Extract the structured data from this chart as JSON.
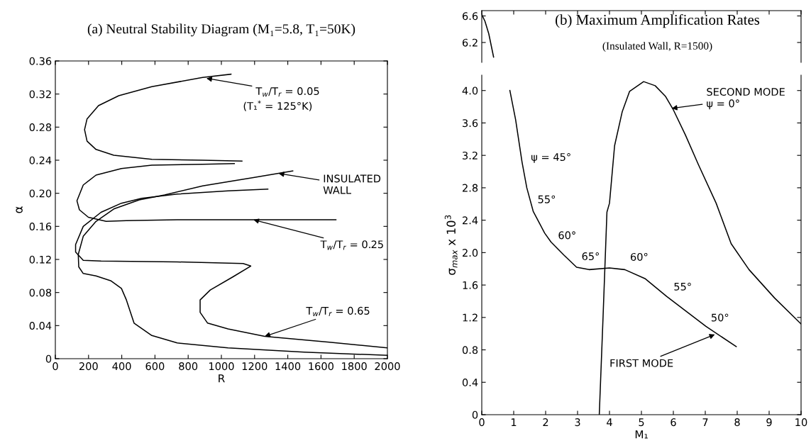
{
  "chart_data": [
    {
      "type": "line",
      "title": "(a) Neutral Stability Diagram (M₁=5.8, T₁=50K)",
      "xlabel": "R",
      "ylabel": "α",
      "xlim": [
        0,
        2000
      ],
      "xticks": [
        0,
        200,
        400,
        600,
        800,
        1000,
        1200,
        1400,
        1600,
        1800,
        2000
      ],
      "ylim": [
        0,
        0.36
      ],
      "yticks": [
        0,
        0.04,
        0.08,
        0.12,
        0.16,
        {
          "value": 0.2,
          "label": "0.20"
        },
        0.24,
        0.28,
        0.32,
        0.36
      ],
      "grid": false,
      "legend": false,
      "marker": "none",
      "line_style": "solid",
      "series": [
        {
          "color": "#000000",
          "x": [
            1058,
            887,
            581,
            382,
            260,
            191,
            176,
            191,
            245,
            352,
            581,
            887,
            1124
          ],
          "values": [
            0.344,
            0.34,
            0.329,
            0.318,
            0.306,
            0.29,
            0.277,
            0.263,
            0.253,
            0.246,
            0.241,
            0.24,
            0.239
          ]
        },
        {
          "color": "#000000",
          "x": [
            1078,
            887,
            581,
            398,
            245,
            168,
            130,
            145,
            199,
            306,
            428,
            734,
            1193,
            1690
          ],
          "values": [
            0.236,
            0.235,
            0.234,
            0.23,
            0.222,
            0.21,
            0.191,
            0.18,
            0.171,
            0.166,
            0.167,
            0.168,
            0.168,
            0.168
          ]
        },
        {
          "color": "#000000",
          "x": [
            2000,
            1498,
            1040,
            734,
            581,
            474,
            428,
            398,
            336,
            245,
            168,
            141,
            138,
            168,
            245,
            352,
            505,
            658,
            887,
            1193,
            1430
          ],
          "values": [
            0.004,
            0.008,
            0.013,
            0.019,
            0.028,
            0.043,
            0.071,
            0.085,
            0.094,
            0.1,
            0.103,
            0.111,
            0.126,
            0.148,
            0.166,
            0.181,
            0.192,
            0.198,
            0.209,
            0.219,
            0.227
          ]
        },
        {
          "color": "#000000",
          "x": [
            2000,
            1651,
            1261,
            1040,
            917,
            872,
            872,
            933,
            1070,
            1177,
            1131,
            734,
            275,
            168,
            122,
            122,
            168,
            275,
            398,
            520,
            734,
            1040,
            1280
          ],
          "values": [
            0.013,
            0.02,
            0.027,
            0.036,
            0.043,
            0.056,
            0.071,
            0.083,
            0.099,
            0.112,
            0.115,
            0.117,
            0.118,
            0.119,
            0.129,
            0.138,
            0.16,
            0.177,
            0.188,
            0.194,
            0.199,
            0.203,
            0.205
          ]
        }
      ],
      "annotations": [
        {
          "text": "T$_{w}$/T$_{r}$ = 0.05",
          "x": 910,
          "y": 0.339
        },
        "(T₁$^{*}$ = 125°K)",
        {
          "text": "INSULATED\nWALL",
          "x": 1345,
          "y": 0.224
        },
        {
          "text": "T$_{w}$/T$_{r}$ = 0.25",
          "x": 1193,
          "y": 0.168
        },
        {
          "text": "T$_{w}$/T$_{r}$ = 0.65",
          "x": 1261,
          "y": 0.027
        }
      ]
    },
    {
      "type": "line",
      "title": "(b) Maximum Amplification Rates",
      "subtitle": "(Insulated Wall, R=1500)",
      "xlim": [
        0,
        10
      ],
      "xticks": [
        0,
        1,
        2,
        3,
        4,
        5,
        6,
        7,
        8,
        9,
        10
      ],
      "ylim": [
        5.9,
        6.68
      ],
      "yticks": [
        6.2,
        6.6
      ],
      "tick_labels": "y",
      "grid": false,
      "legend": false,
      "marker": "none",
      "line_style": "solid",
      "series": [
        {
          "color": "#000000",
          "x": [
            0,
            0.1,
            0.22,
            0.37
          ],
          "values": [
            6.62,
            6.52,
            6.33,
            5.98
          ]
        }
      ]
    },
    {
      "type": "line",
      "xlabel": "M₁",
      "ylabel": "σ$_{max}$ x 10$^{3}$",
      "xlim": [
        0,
        10
      ],
      "xticks": [
        0,
        1,
        2,
        3,
        4,
        5,
        6,
        7,
        8,
        9,
        10
      ],
      "ylim": [
        0,
        4.19
      ],
      "yticks": [
        0,
        0.4,
        0.8,
        1.2,
        1.6,
        {
          "value": 2,
          "label": "2.0"
        },
        2.4,
        2.8,
        3.2,
        3.6,
        {
          "value": 4,
          "label": "4.0"
        }
      ],
      "grid": false,
      "legend": false,
      "marker": "none",
      "line_style": "solid",
      "series": [
        {
          "color": "#000000",
          "x": [
            0.88,
            1.06,
            1.26,
            1.41,
            1.61,
            1.97,
            2.17,
            2.57,
            2.97,
            3.36,
            4.0,
            4.48,
            5.11,
            5.79,
            7.02,
            7.97
          ],
          "values": [
            4.0,
            3.64,
            3.12,
            2.8,
            2.51,
            2.24,
            2.13,
            1.97,
            1.82,
            1.79,
            1.81,
            1.79,
            1.68,
            1.46,
            1.09,
            0.84
          ]
        },
        {
          "color": "#000000",
          "x": [
            3.68,
            3.8,
            3.92,
            4.0,
            4.16,
            4.4,
            4.63,
            5.07,
            5.43,
            5.75,
            5.99,
            6.38,
            6.78,
            7.34,
            7.81,
            8.37,
            9.17,
            10.0
          ],
          "values": [
            0,
            1.22,
            2.5,
            2.61,
            3.32,
            3.74,
            3.99,
            4.11,
            4.06,
            3.93,
            3.77,
            3.45,
            3.09,
            2.61,
            2.11,
            1.79,
            1.44,
            1.12
          ]
        }
      ],
      "annotations": [
        {
          "text": "ψ = 45°",
          "x": 1.26,
          "y": 3.12
        },
        {
          "text": "55°",
          "x": 1.53,
          "y": 2.61
        },
        {
          "text": "60°",
          "x": 2.17,
          "y": 2.13
        },
        {
          "text": "65°",
          "x": 3.0,
          "y": 1.81
        },
        {
          "text": "60°",
          "x": 4.52,
          "y": 1.79
        },
        {
          "text": "55°",
          "x": 5.79,
          "y": 1.46
        },
        {
          "text": "50°",
          "x": 7.02,
          "y": 1.09
        },
        {
          "text": "SECOND MODE\nψ = 0°",
          "x": 5.95,
          "y": 3.78
        },
        {
          "text": "FIRST MODE",
          "x": 7.3,
          "y": 0.99
        }
      ]
    }
  ]
}
